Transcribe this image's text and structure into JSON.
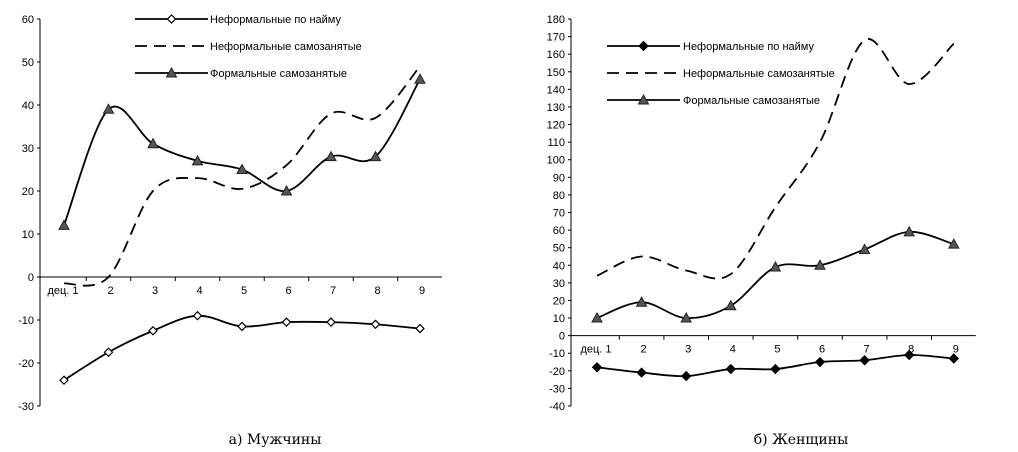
{
  "chart_data": [
    {
      "type": "line",
      "caption": "а) Мужчины",
      "categories": [
        "дец. 1",
        "2",
        "3",
        "4",
        "5",
        "6",
        "7",
        "8",
        "9"
      ],
      "ylim": [
        -30,
        60
      ],
      "yticks": [
        -30,
        -20,
        -10,
        0,
        10,
        20,
        30,
        40,
        50,
        60
      ],
      "series": [
        {
          "name": "Неформальные по найму",
          "style": "solid",
          "marker": "diamond-open",
          "values": [
            -24,
            -17.5,
            -12.5,
            -9,
            -11.5,
            -10.5,
            -10.5,
            -11,
            -12
          ]
        },
        {
          "name": "Неформальные самозанятые",
          "style": "dashed",
          "marker": "none",
          "values": [
            -1.5,
            0,
            20,
            23,
            20.5,
            26,
            38,
            37,
            49
          ]
        },
        {
          "name": "Формальные самозанятые",
          "style": "solid",
          "marker": "triangle",
          "values": [
            12,
            39,
            31,
            27,
            25,
            20,
            28,
            28,
            46
          ]
        }
      ]
    },
    {
      "type": "line",
      "caption": "б) Женщины",
      "categories": [
        "дец. 1",
        "2",
        "3",
        "4",
        "5",
        "6",
        "7",
        "8",
        "9"
      ],
      "ylim": [
        -40,
        180
      ],
      "yticks": [
        -40,
        -30,
        -20,
        -10,
        0,
        10,
        20,
        30,
        40,
        50,
        60,
        70,
        80,
        90,
        100,
        110,
        120,
        130,
        140,
        150,
        160,
        170,
        180
      ],
      "series": [
        {
          "name": "Неформальные по найму",
          "style": "solid",
          "marker": "diamond-filled",
          "values": [
            -18,
            -21,
            -23,
            -19,
            -19,
            -15,
            -14,
            -11,
            -13
          ]
        },
        {
          "name": "Неформальные самозанятые",
          "style": "dashed",
          "marker": "none",
          "values": [
            34,
            45,
            37,
            35,
            73,
            110,
            168,
            143,
            166
          ]
        },
        {
          "name": "Формальные самозанятые",
          "style": "solid",
          "marker": "triangle",
          "values": [
            10,
            19,
            10,
            17,
            39,
            40,
            49,
            59,
            52
          ]
        }
      ]
    }
  ]
}
